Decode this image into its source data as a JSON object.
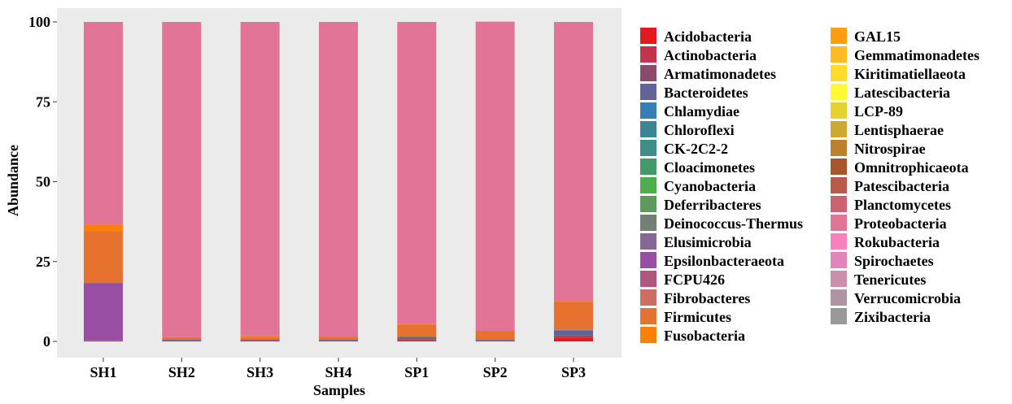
{
  "chart_data": {
    "type": "bar",
    "stacked": true,
    "xlabel": "Samples",
    "ylabel": "Abundance",
    "ylim": [
      0,
      100
    ],
    "yticks": [
      0,
      25,
      50,
      75,
      100
    ],
    "categories": [
      "SH1",
      "SH2",
      "SH3",
      "SH4",
      "SP1",
      "SP2",
      "SP3"
    ],
    "panel_background": "#ebebeb",
    "legend_position": "right",
    "series": [
      {
        "name": "Acidobacteria",
        "color": "#e41a1c",
        "values": [
          0.1,
          0.1,
          0.2,
          0.1,
          0.3,
          0.1,
          1.2
        ]
      },
      {
        "name": "Actinobacteria",
        "color": "#c3334a",
        "values": [
          0.1,
          0.1,
          0.2,
          0.1,
          0.4,
          0.1,
          0.5
        ]
      },
      {
        "name": "Armatimonadetes",
        "color": "#8e4a6a",
        "values": [
          0.0,
          0.0,
          0.0,
          0.0,
          0.2,
          0.0,
          0.1
        ]
      },
      {
        "name": "Bacteroidetes",
        "color": "#63639a",
        "values": [
          0.1,
          0.3,
          0.2,
          0.3,
          0.4,
          0.3,
          1.6
        ]
      },
      {
        "name": "Chlamydiae",
        "color": "#377eb8",
        "values": [
          0.0,
          0.0,
          0.0,
          0.0,
          0.0,
          0.0,
          0.0
        ]
      },
      {
        "name": "Chloroflexi",
        "color": "#3a8696",
        "values": [
          0.0,
          0.0,
          0.0,
          0.0,
          0.1,
          0.0,
          0.1
        ]
      },
      {
        "name": "CK-2C2-2",
        "color": "#3d8e86",
        "values": [
          0.0,
          0.0,
          0.0,
          0.0,
          0.0,
          0.0,
          0.0
        ]
      },
      {
        "name": "Cloacimonetes",
        "color": "#419a68",
        "values": [
          0.0,
          0.0,
          0.0,
          0.0,
          0.0,
          0.0,
          0.0
        ]
      },
      {
        "name": "Cyanobacteria",
        "color": "#4daf4a",
        "values": [
          0.0,
          0.0,
          0.0,
          0.0,
          0.0,
          0.0,
          0.0
        ]
      },
      {
        "name": "Deferribacteres",
        "color": "#5e9a5c",
        "values": [
          0.0,
          0.0,
          0.0,
          0.0,
          0.0,
          0.0,
          0.0
        ]
      },
      {
        "name": "Deinococcus-Thermus",
        "color": "#728074",
        "values": [
          0.0,
          0.0,
          0.0,
          0.0,
          0.0,
          0.0,
          0.0
        ]
      },
      {
        "name": "Elusimicrobia",
        "color": "#846995",
        "values": [
          0.0,
          0.0,
          0.0,
          0.0,
          0.0,
          0.0,
          0.0
        ]
      },
      {
        "name": "Epsilonbacteraeota",
        "color": "#984ea3",
        "values": [
          18.0,
          0.0,
          0.0,
          0.0,
          0.0,
          0.0,
          0.1
        ]
      },
      {
        "name": "FCPU426",
        "color": "#b0577f",
        "values": [
          0.0,
          0.0,
          0.0,
          0.0,
          0.0,
          0.0,
          0.0
        ]
      },
      {
        "name": "Fibrobacteres",
        "color": "#cc6e61",
        "values": [
          0.0,
          0.0,
          0.0,
          0.0,
          0.0,
          0.0,
          0.0
        ]
      },
      {
        "name": "Firmicutes",
        "color": "#e7712e",
        "values": [
          16.2,
          0.8,
          0.7,
          1.0,
          3.8,
          2.8,
          8.8
        ]
      },
      {
        "name": "Fusobacteria",
        "color": "#ff7f00",
        "values": [
          2.0,
          0.0,
          0.5,
          0.0,
          0.3,
          0.0,
          0.2
        ]
      },
      {
        "name": "GAL15",
        "color": "#ff9d12",
        "values": [
          0.0,
          0.0,
          0.0,
          0.0,
          0.0,
          0.0,
          0.0
        ]
      },
      {
        "name": "Gemmatimonadetes",
        "color": "#ffbc22",
        "values": [
          0.0,
          0.0,
          0.0,
          0.0,
          0.0,
          0.0,
          0.0
        ]
      },
      {
        "name": "Kiritimatiellaeota",
        "color": "#ffdb2c",
        "values": [
          0.0,
          0.0,
          0.0,
          0.0,
          0.0,
          0.0,
          0.0
        ]
      },
      {
        "name": "Latescibacteria",
        "color": "#fffb33",
        "values": [
          0.0,
          0.0,
          0.0,
          0.0,
          0.0,
          0.0,
          0.0
        ]
      },
      {
        "name": "LCP-89",
        "color": "#e6d22f",
        "values": [
          0.0,
          0.0,
          0.0,
          0.0,
          0.0,
          0.0,
          0.0
        ]
      },
      {
        "name": "Lentisphaerae",
        "color": "#cca930",
        "values": [
          0.0,
          0.0,
          0.0,
          0.0,
          0.0,
          0.0,
          0.0
        ]
      },
      {
        "name": "Nitrospirae",
        "color": "#bd802b",
        "values": [
          0.0,
          0.0,
          0.0,
          0.0,
          0.0,
          0.0,
          0.0
        ]
      },
      {
        "name": "Omnitrophicaeota",
        "color": "#a65628",
        "values": [
          0.0,
          0.0,
          0.0,
          0.0,
          0.0,
          0.0,
          0.0
        ]
      },
      {
        "name": "Patescibacteria",
        "color": "#b95a4c",
        "values": [
          0.0,
          0.0,
          0.0,
          0.0,
          0.0,
          0.0,
          0.0
        ]
      },
      {
        "name": "Planctomycetes",
        "color": "#cd6270",
        "values": [
          0.0,
          0.0,
          0.0,
          0.0,
          0.0,
          0.0,
          0.0
        ]
      },
      {
        "name": "Proteobacteria",
        "color": "#e27497",
        "values": [
          63.5,
          98.7,
          98.2,
          98.5,
          94.5,
          96.8,
          87.4
        ]
      },
      {
        "name": "Rokubacteria",
        "color": "#f781bf",
        "values": [
          0.0,
          0.0,
          0.0,
          0.0,
          0.0,
          0.0,
          0.0
        ]
      },
      {
        "name": "Spirochaetes",
        "color": "#e286b9",
        "values": [
          0.0,
          0.0,
          0.0,
          0.0,
          0.0,
          0.0,
          0.0
        ]
      },
      {
        "name": "Tenericutes",
        "color": "#c98fac",
        "values": [
          0.0,
          0.0,
          0.0,
          0.0,
          0.0,
          0.0,
          0.0
        ]
      },
      {
        "name": "Verrucomicrobia",
        "color": "#ae95a6",
        "values": [
          0.0,
          0.0,
          0.0,
          0.0,
          0.0,
          0.0,
          0.0
        ]
      },
      {
        "name": "Zixibacteria",
        "color": "#999999",
        "values": [
          0.0,
          0.0,
          0.0,
          0.0,
          0.0,
          0.0,
          0.0
        ]
      }
    ]
  }
}
